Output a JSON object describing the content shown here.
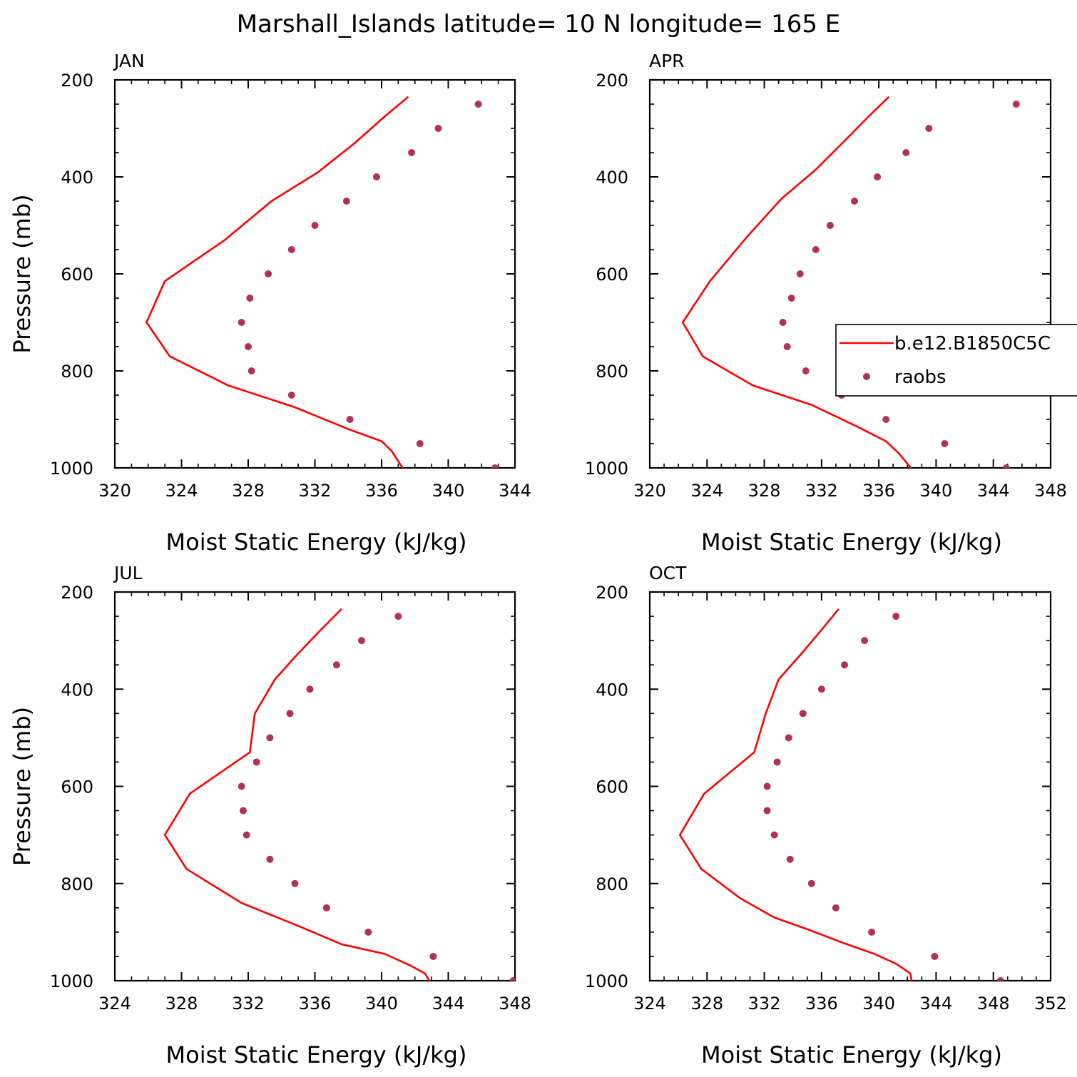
{
  "title": "Marshall_Islands  latitude= 10 N longitude= 165 E",
  "legend": {
    "position": "right",
    "items": [
      {
        "label": "b.e12.B1850C5C",
        "color": "#ff0000",
        "kind": "line"
      },
      {
        "label": "raobs",
        "color": "#b03060",
        "kind": "marker"
      }
    ]
  },
  "chart_data": [
    {
      "type": "line",
      "panel_label": "JAN",
      "xlabel": "Moist Static Energy (kJ/kg)",
      "ylabel": "Pressure (mb)",
      "xlim": [
        320,
        344
      ],
      "xticks": [
        320,
        324,
        328,
        332,
        336,
        340,
        344
      ],
      "ylim": [
        1000,
        200
      ],
      "yticks": [
        200,
        400,
        600,
        800,
        1000
      ],
      "series": [
        {
          "name": "b.e12.B1850C5C",
          "color": "#ff0000",
          "kind": "line",
          "x": [
            337.6,
            336.2,
            334.4,
            332.2,
            329.4,
            326.6,
            323.0,
            321.9,
            323.3,
            326.8,
            330.8,
            334.0,
            336.0,
            336.6,
            337.3
          ],
          "y": [
            235,
            275,
            330,
            390,
            450,
            530,
            615,
            700,
            770,
            830,
            875,
            920,
            945,
            965,
            1002
          ]
        },
        {
          "name": "raobs",
          "color": "#b03060",
          "kind": "marker",
          "x": [
            341.8,
            339.4,
            337.8,
            335.7,
            333.9,
            332.0,
            330.6,
            329.2,
            328.1,
            327.6,
            328.0,
            328.2,
            330.6,
            334.1,
            338.3,
            342.8
          ],
          "y": [
            250,
            300,
            350,
            400,
            450,
            500,
            550,
            600,
            650,
            700,
            750,
            800,
            850,
            900,
            950,
            1000
          ]
        }
      ]
    },
    {
      "type": "line",
      "panel_label": "APR",
      "xlabel": "Moist Static Energy (kJ/kg)",
      "ylabel": "",
      "xlim": [
        320,
        348
      ],
      "xticks": [
        320,
        324,
        328,
        332,
        336,
        340,
        344,
        348
      ],
      "ylim": [
        1000,
        200
      ],
      "yticks": [
        200,
        400,
        600,
        800,
        1000
      ],
      "series": [
        {
          "name": "b.e12.B1850C5C",
          "color": "#ff0000",
          "kind": "line",
          "x": [
            336.7,
            335.3,
            333.8,
            331.6,
            329.2,
            326.9,
            324.2,
            322.3,
            323.7,
            327.2,
            331.3,
            334.5,
            336.5,
            337.4,
            338.3
          ],
          "y": [
            235,
            275,
            320,
            385,
            445,
            520,
            615,
            700,
            770,
            830,
            870,
            915,
            945,
            970,
            1002
          ]
        },
        {
          "name": "raobs",
          "color": "#b03060",
          "kind": "marker",
          "x": [
            345.6,
            339.5,
            337.9,
            335.9,
            334.3,
            332.6,
            331.6,
            330.5,
            329.9,
            329.3,
            329.6,
            330.9,
            333.4,
            336.5,
            340.6,
            344.9
          ],
          "y": [
            250,
            300,
            350,
            400,
            450,
            500,
            550,
            600,
            650,
            700,
            750,
            800,
            850,
            900,
            950,
            1000
          ]
        }
      ]
    },
    {
      "type": "line",
      "panel_label": "JUL",
      "xlabel": "Moist Static Energy (kJ/kg)",
      "ylabel": "Pressure (mb)",
      "xlim": [
        324,
        348
      ],
      "xticks": [
        324,
        328,
        332,
        336,
        340,
        344,
        348
      ],
      "ylim": [
        1000,
        200
      ],
      "yticks": [
        200,
        400,
        600,
        800,
        1000
      ],
      "series": [
        {
          "name": "b.e12.B1850C5C",
          "color": "#ff0000",
          "kind": "line",
          "x": [
            337.6,
            336.3,
            334.9,
            333.6,
            332.4,
            332.1,
            328.5,
            327.0,
            328.3,
            331.6,
            335.2,
            337.6,
            340.2,
            341.8,
            342.6,
            342.9
          ],
          "y": [
            235,
            280,
            330,
            380,
            450,
            530,
            615,
            700,
            770,
            840,
            890,
            925,
            945,
            970,
            985,
            1002
          ]
        },
        {
          "name": "raobs",
          "color": "#b03060",
          "kind": "marker",
          "x": [
            341.0,
            338.8,
            337.3,
            335.7,
            334.5,
            333.3,
            332.5,
            331.6,
            331.7,
            331.9,
            333.3,
            334.8,
            336.7,
            339.2,
            343.1,
            347.9
          ],
          "y": [
            250,
            300,
            350,
            400,
            450,
            500,
            550,
            600,
            650,
            700,
            750,
            800,
            850,
            900,
            950,
            1000
          ]
        }
      ]
    },
    {
      "type": "line",
      "panel_label": "OCT",
      "xlabel": "Moist Static Energy (kJ/kg)",
      "ylabel": "",
      "xlim": [
        324,
        352
      ],
      "xticks": [
        324,
        328,
        332,
        336,
        340,
        344,
        348,
        352
      ],
      "ylim": [
        1000,
        200
      ],
      "yticks": [
        200,
        400,
        600,
        800,
        1000
      ],
      "series": [
        {
          "name": "b.e12.B1850C5C",
          "color": "#ff0000",
          "kind": "line",
          "x": [
            337.2,
            335.8,
            334.5,
            333.0,
            332.1,
            331.3,
            327.8,
            326.1,
            327.6,
            330.3,
            332.7,
            335.1,
            337.3,
            339.7,
            341.2,
            342.2,
            342.3
          ],
          "y": [
            235,
            285,
            330,
            380,
            450,
            530,
            615,
            700,
            770,
            830,
            870,
            895,
            920,
            945,
            965,
            985,
            1002
          ]
        },
        {
          "name": "raobs",
          "color": "#b03060",
          "kind": "marker",
          "x": [
            341.2,
            339.0,
            337.6,
            336.0,
            334.7,
            333.7,
            332.9,
            332.2,
            332.2,
            332.7,
            333.8,
            335.3,
            337.0,
            339.5,
            343.9,
            348.5
          ],
          "y": [
            250,
            300,
            350,
            400,
            450,
            500,
            550,
            600,
            650,
            700,
            750,
            800,
            850,
            900,
            950,
            1000
          ]
        }
      ]
    }
  ]
}
